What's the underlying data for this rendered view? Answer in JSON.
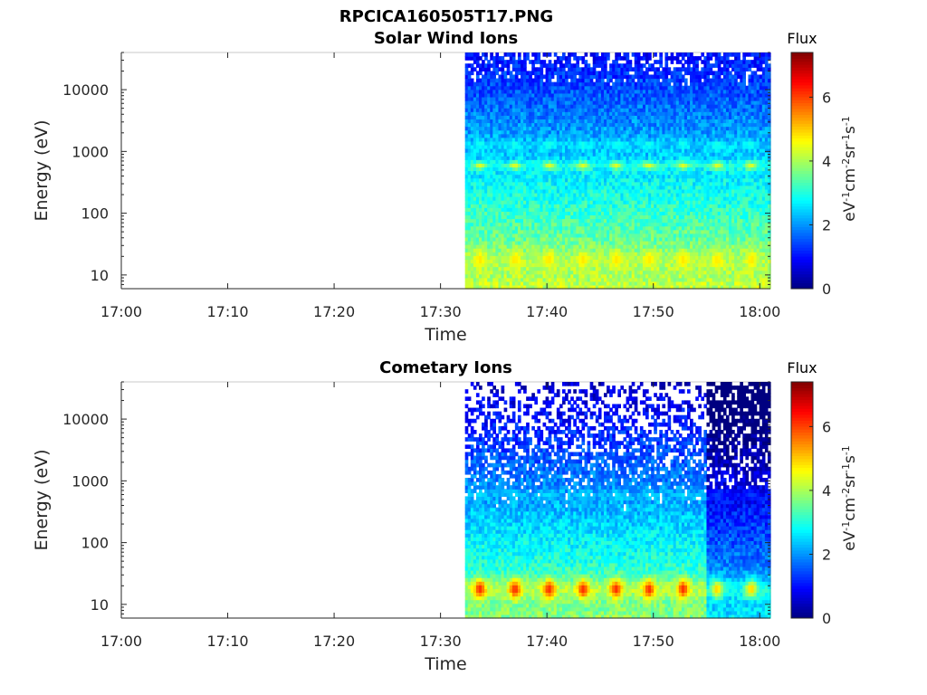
{
  "figure_title": "RPCICA160505T17.PNG",
  "colorbar": {
    "title": "Flux",
    "label_base": "eV",
    "label_parts": [
      {
        "t": "eV",
        "sup": false
      },
      {
        "t": "-1",
        "sup": true
      },
      {
        "t": "cm",
        "sup": false
      },
      {
        "t": "-2",
        "sup": true
      },
      {
        "t": "sr",
        "sup": false
      },
      {
        "t": "-1",
        "sup": true
      },
      {
        "t": "s",
        "sup": false
      },
      {
        "t": "-1",
        "sup": true
      }
    ],
    "range": [
      0,
      7.4
    ],
    "ticks": [
      0,
      2,
      4,
      6
    ],
    "tick_labels": [
      "0",
      "2",
      "4",
      "6"
    ]
  },
  "chart_data": [
    {
      "type": "heatmap",
      "title": "Solar Wind Ions",
      "xlabel": "Time",
      "ylabel": "Energy (eV)",
      "x_range_min": [
        0,
        61
      ],
      "x_ticks_min": [
        0,
        10,
        20,
        30,
        40,
        50,
        60
      ],
      "x_tick_labels": [
        "17:00",
        "17:10",
        "17:20",
        "17:30",
        "17:40",
        "17:50",
        "18:00"
      ],
      "y_scale": "log",
      "ylim": [
        6,
        40000
      ],
      "y_ticks": [
        10,
        100,
        1000,
        10000
      ],
      "y_tick_labels": [
        "10",
        "100",
        "1000",
        "10000"
      ],
      "data_start_min": 32.3,
      "pulse_times_min": [
        33.7,
        37,
        40.2,
        43.4,
        46.5,
        49.6,
        52.8,
        56,
        59.2
      ],
      "bands": [
        {
          "energy_eV": 600,
          "peak_flux": 4.4
        },
        {
          "energy_eV": 1300,
          "peak_flux": 3.0
        },
        {
          "energy_eV": 18,
          "peak_flux": 4.8
        }
      ],
      "background_flux_range": [
        1.0,
        4.2
      ]
    },
    {
      "type": "heatmap",
      "title": "Cometary Ions",
      "xlabel": "Time",
      "ylabel": "Energy (eV)",
      "x_range_min": [
        0,
        61
      ],
      "x_ticks_min": [
        0,
        10,
        20,
        30,
        40,
        50,
        60
      ],
      "x_tick_labels": [
        "17:00",
        "17:10",
        "17:20",
        "17:30",
        "17:40",
        "17:50",
        "18:00"
      ],
      "y_scale": "log",
      "ylim": [
        6,
        40000
      ],
      "y_ticks": [
        10,
        100,
        1000,
        10000
      ],
      "y_tick_labels": [
        "10",
        "100",
        "1000",
        "10000"
      ],
      "data_start_min": 32.3,
      "pulse_times_min": [
        33.7,
        37,
        40.2,
        43.4,
        46.5,
        49.6,
        52.8,
        56,
        59.2
      ],
      "bands": [
        {
          "energy_eV": 600,
          "peak_flux": 2.6
        },
        {
          "energy_eV": 18,
          "peak_flux": 6.2
        }
      ],
      "background_flux_range": [
        0.5,
        3.8
      ]
    }
  ]
}
